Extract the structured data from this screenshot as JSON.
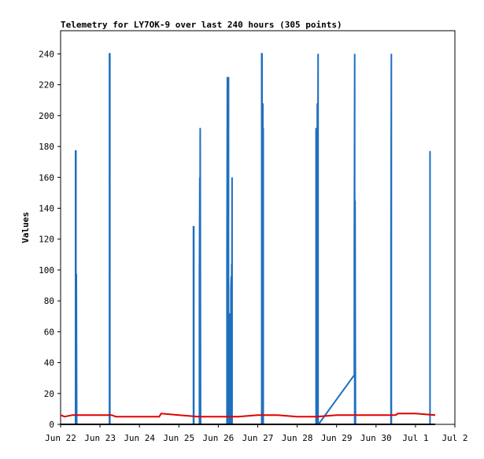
{
  "chart_data": {
    "type": "line",
    "title": "Telemetry for LY7OK-9 over last 240 hours (305 points)",
    "xlabel": "",
    "ylabel": "Values",
    "x_ticks": [
      "Jun 22",
      "Jun 23",
      "Jun 24",
      "Jun 25",
      "Jun 26",
      "Jun 27",
      "Jun 28",
      "Jun 29",
      "Jun 30",
      "Jul 1",
      "Jul 2"
    ],
    "xlim": [
      0,
      10
    ],
    "ylim": [
      0,
      255
    ],
    "y_ticks": [
      0,
      20,
      40,
      60,
      80,
      100,
      120,
      140,
      160,
      180,
      200,
      220,
      240
    ],
    "grid": false,
    "legend": "none",
    "colors": {
      "blue": "#1f6fbf",
      "red": "#e00000",
      "black": "#000000",
      "axis": "#000000"
    },
    "series": [
      {
        "color": "#1f6fbf",
        "x": [
          0.38,
          0.38,
          0.39,
          0.39,
          0.39,
          0.4,
          0.41,
          0.41,
          0.42,
          1.24,
          1.24,
          1.25,
          1.25,
          1.26,
          3.37,
          3.37,
          3.38,
          3.38,
          3.52,
          3.52,
          3.53,
          3.53,
          3.54,
          3.54,
          3.55,
          4.22,
          4.22,
          4.23,
          4.23,
          4.24,
          4.24,
          4.25,
          4.25,
          4.26,
          4.26,
          4.27,
          4.27,
          4.28,
          4.28,
          4.29,
          4.32,
          4.32,
          4.33,
          4.33,
          4.34,
          4.34,
          4.35,
          4.35,
          4.36,
          4.36,
          4.37,
          4.37,
          4.38,
          4.38,
          4.39,
          4.39,
          4.4,
          5.1,
          5.1,
          5.11,
          5.11,
          5.12,
          5.12,
          5.13,
          5.13,
          5.14,
          5.14,
          5.15,
          5.15,
          5.16,
          6.48,
          6.48,
          6.49,
          6.5,
          6.51,
          6.51,
          6.53,
          6.53,
          6.54,
          6.54,
          7.45,
          7.45,
          7.46,
          7.46,
          7.47,
          7.47,
          7.48,
          7.48,
          7.49,
          8.38,
          8.38,
          8.39,
          8.39,
          8.4,
          8.4,
          8.41,
          9.37,
          9.37
        ],
        "values": [
          0,
          177,
          177,
          0,
          97,
          97,
          0,
          0,
          0,
          0,
          240,
          240,
          0,
          0,
          0,
          128,
          128,
          0,
          0,
          97,
          160,
          0,
          192,
          192,
          0,
          0,
          112,
          225,
          0,
          225,
          0,
          225,
          0,
          225,
          0,
          16,
          24,
          56,
          72,
          0,
          0,
          88,
          96,
          0,
          104,
          0,
          160,
          0,
          0,
          0,
          0,
          0,
          0,
          0,
          0,
          0,
          0,
          0,
          240,
          240,
          0,
          184,
          0,
          208,
          0,
          192,
          0,
          0,
          0,
          0,
          0,
          192,
          0,
          0,
          208,
          0,
          240,
          0,
          0,
          0,
          32,
          112,
          240,
          0,
          145,
          145,
          0,
          0,
          0,
          0,
          120,
          240,
          0,
          0,
          0,
          0,
          0,
          177
        ]
      },
      {
        "color": "#e00000",
        "x": [
          0.0,
          0.1,
          0.3,
          0.6,
          1.0,
          1.3,
          1.4,
          1.6,
          2.0,
          2.5,
          2.55,
          3.0,
          3.5,
          4.0,
          4.5,
          5.0,
          5.5,
          6.0,
          6.5,
          7.0,
          7.5,
          8.0,
          8.5,
          8.55,
          9.0,
          9.5
        ],
        "values": [
          6,
          5,
          6,
          6,
          6,
          6,
          5,
          5,
          5,
          5,
          7,
          6,
          5,
          5,
          5,
          6,
          6,
          5,
          5,
          6,
          6,
          6,
          6,
          7,
          7,
          6
        ]
      },
      {
        "color": "#000000",
        "x": [
          0.0,
          9.5
        ],
        "values": [
          0,
          0
        ]
      }
    ]
  }
}
